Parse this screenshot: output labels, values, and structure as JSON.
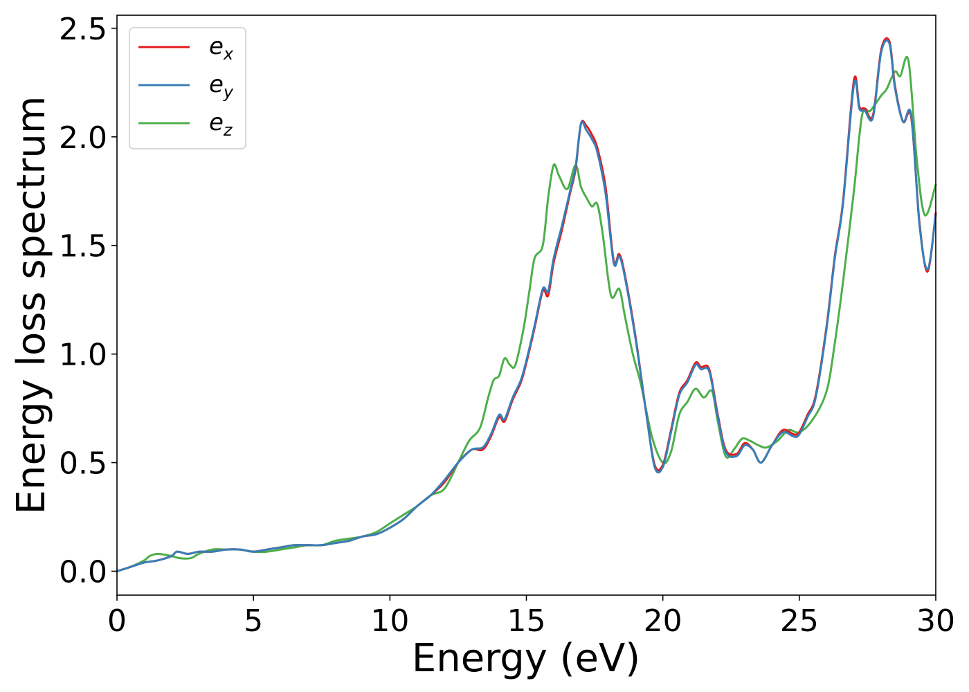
{
  "chart_data": {
    "type": "line",
    "title": "",
    "xlabel": "Energy (eV)",
    "ylabel": "Energy loss spectrum",
    "xlim": [
      0,
      30
    ],
    "ylim": [
      -0.11,
      2.56
    ],
    "xticks": [
      0,
      5,
      10,
      15,
      20,
      25,
      30
    ],
    "xtick_labels": [
      "0",
      "5",
      "10",
      "15",
      "20",
      "25",
      "30"
    ],
    "yticks": [
      0.0,
      0.5,
      1.0,
      1.5,
      2.0,
      2.5
    ],
    "ytick_labels": [
      "0.0",
      "0.5",
      "1.0",
      "1.5",
      "2.0",
      "2.5"
    ],
    "grid": false,
    "legend": {
      "position": "upper-left",
      "entries": [
        {
          "base": "e",
          "sub": "x",
          "color": "#e41a1c"
        },
        {
          "base": "e",
          "sub": "y",
          "color": "#377eb8"
        },
        {
          "base": "e",
          "sub": "z",
          "color": "#4daf4a"
        }
      ]
    },
    "series": [
      {
        "color": "#e41a1c",
        "x": [
          0,
          0.5,
          1.0,
          1.5,
          2.0,
          2.2,
          2.6,
          3.0,
          3.5,
          4.0,
          4.5,
          5.0,
          5.5,
          6.0,
          6.5,
          7.0,
          7.5,
          8.0,
          8.5,
          9.0,
          9.5,
          10.0,
          10.5,
          11.0,
          11.5,
          12.0,
          12.5,
          13.0,
          13.4,
          13.7,
          14.0,
          14.2,
          14.5,
          14.8,
          15.0,
          15.3,
          15.6,
          15.8,
          16.0,
          16.3,
          16.6,
          16.8,
          17.0,
          17.2,
          17.4,
          17.6,
          17.9,
          18.2,
          18.4,
          18.6,
          19.0,
          19.4,
          19.7,
          20.0,
          20.3,
          20.6,
          20.9,
          21.2,
          21.4,
          21.7,
          22.0,
          22.3,
          22.7,
          23.0,
          23.3,
          23.6,
          24.0,
          24.4,
          24.8,
          25.0,
          25.3,
          25.6,
          26.0,
          26.3,
          26.6,
          27.0,
          27.2,
          27.4,
          27.7,
          28.0,
          28.3,
          28.5,
          28.8,
          29.1,
          29.4,
          29.7,
          30.0
        ],
        "y": [
          0.0,
          0.02,
          0.04,
          0.05,
          0.07,
          0.09,
          0.08,
          0.09,
          0.09,
          0.1,
          0.1,
          0.09,
          0.1,
          0.11,
          0.12,
          0.12,
          0.12,
          0.13,
          0.14,
          0.16,
          0.17,
          0.2,
          0.24,
          0.3,
          0.35,
          0.41,
          0.5,
          0.56,
          0.56,
          0.62,
          0.71,
          0.69,
          0.79,
          0.87,
          0.96,
          1.12,
          1.29,
          1.27,
          1.42,
          1.57,
          1.74,
          1.85,
          2.06,
          2.05,
          2.01,
          1.95,
          1.77,
          1.43,
          1.46,
          1.37,
          1.08,
          0.72,
          0.49,
          0.49,
          0.65,
          0.82,
          0.88,
          0.96,
          0.94,
          0.93,
          0.73,
          0.56,
          0.54,
          0.59,
          0.56,
          0.5,
          0.58,
          0.65,
          0.63,
          0.64,
          0.72,
          0.81,
          1.13,
          1.45,
          1.7,
          2.26,
          2.14,
          2.13,
          2.1,
          2.4,
          2.44,
          2.24,
          2.07,
          2.09,
          1.61,
          1.38,
          1.65
        ]
      },
      {
        "color": "#377eb8",
        "x": [
          0,
          0.5,
          1.0,
          1.5,
          2.0,
          2.2,
          2.6,
          3.0,
          3.5,
          4.0,
          4.5,
          5.0,
          5.5,
          6.0,
          6.5,
          7.0,
          7.5,
          8.0,
          8.5,
          9.0,
          9.5,
          10.0,
          10.5,
          11.0,
          11.5,
          12.0,
          12.5,
          13.0,
          13.4,
          13.7,
          14.0,
          14.2,
          14.5,
          14.8,
          15.0,
          15.3,
          15.6,
          15.8,
          16.0,
          16.3,
          16.6,
          16.8,
          17.0,
          17.2,
          17.4,
          17.6,
          17.9,
          18.2,
          18.4,
          18.6,
          19.0,
          19.4,
          19.7,
          20.0,
          20.3,
          20.6,
          20.9,
          21.2,
          21.4,
          21.7,
          22.0,
          22.3,
          22.7,
          23.0,
          23.3,
          23.6,
          24.0,
          24.4,
          24.8,
          25.0,
          25.3,
          25.6,
          26.0,
          26.3,
          26.6,
          27.0,
          27.2,
          27.4,
          27.7,
          28.0,
          28.3,
          28.5,
          28.8,
          29.1,
          29.4,
          29.7,
          30.0
        ],
        "y": [
          0.0,
          0.02,
          0.04,
          0.05,
          0.07,
          0.09,
          0.08,
          0.09,
          0.09,
          0.1,
          0.1,
          0.09,
          0.1,
          0.11,
          0.12,
          0.12,
          0.12,
          0.13,
          0.14,
          0.16,
          0.17,
          0.2,
          0.24,
          0.3,
          0.35,
          0.42,
          0.5,
          0.56,
          0.57,
          0.63,
          0.72,
          0.7,
          0.8,
          0.88,
          0.97,
          1.13,
          1.3,
          1.29,
          1.44,
          1.59,
          1.75,
          1.86,
          2.06,
          2.03,
          1.99,
          1.93,
          1.74,
          1.42,
          1.45,
          1.36,
          1.07,
          0.72,
          0.48,
          0.48,
          0.64,
          0.81,
          0.87,
          0.95,
          0.93,
          0.92,
          0.72,
          0.55,
          0.53,
          0.58,
          0.56,
          0.5,
          0.58,
          0.64,
          0.62,
          0.63,
          0.71,
          0.8,
          1.12,
          1.44,
          1.69,
          2.24,
          2.13,
          2.12,
          2.09,
          2.39,
          2.43,
          2.23,
          2.07,
          2.1,
          1.6,
          1.39,
          1.64
        ]
      },
      {
        "color": "#4daf4a",
        "x": [
          0,
          0.5,
          1.0,
          1.2,
          1.5,
          2.0,
          2.3,
          2.7,
          3.0,
          3.5,
          4.0,
          4.5,
          5.0,
          5.5,
          6.0,
          6.5,
          7.0,
          7.5,
          8.0,
          8.5,
          9.0,
          9.5,
          10.0,
          10.5,
          11.0,
          11.5,
          12.0,
          12.5,
          12.9,
          13.3,
          13.6,
          13.8,
          14.0,
          14.2,
          14.4,
          14.6,
          14.9,
          15.1,
          15.3,
          15.6,
          15.8,
          16.0,
          16.2,
          16.5,
          16.8,
          17.0,
          17.2,
          17.4,
          17.6,
          17.8,
          18.1,
          18.4,
          18.6,
          18.9,
          19.2,
          19.6,
          20.0,
          20.3,
          20.6,
          20.9,
          21.2,
          21.5,
          21.8,
          22.0,
          22.3,
          22.6,
          22.9,
          23.2,
          23.5,
          23.8,
          24.2,
          24.6,
          25.0,
          25.5,
          26.0,
          26.3,
          26.6,
          27.0,
          27.3,
          27.6,
          28.0,
          28.2,
          28.5,
          28.7,
          29.0,
          29.3,
          29.6,
          30.0
        ],
        "y": [
          0.0,
          0.02,
          0.05,
          0.07,
          0.08,
          0.07,
          0.06,
          0.06,
          0.08,
          0.1,
          0.1,
          0.1,
          0.09,
          0.09,
          0.1,
          0.11,
          0.12,
          0.12,
          0.14,
          0.15,
          0.16,
          0.18,
          0.22,
          0.26,
          0.3,
          0.35,
          0.38,
          0.5,
          0.6,
          0.66,
          0.8,
          0.88,
          0.9,
          0.98,
          0.95,
          0.95,
          1.12,
          1.28,
          1.44,
          1.5,
          1.72,
          1.87,
          1.82,
          1.76,
          1.87,
          1.77,
          1.72,
          1.68,
          1.69,
          1.55,
          1.27,
          1.3,
          1.18,
          1.0,
          0.86,
          0.62,
          0.5,
          0.55,
          0.72,
          0.78,
          0.84,
          0.8,
          0.83,
          0.7,
          0.53,
          0.56,
          0.61,
          0.6,
          0.58,
          0.57,
          0.6,
          0.65,
          0.64,
          0.7,
          0.83,
          1.05,
          1.33,
          1.75,
          2.1,
          2.12,
          2.19,
          2.22,
          2.3,
          2.28,
          2.35,
          1.9,
          1.64,
          1.78
        ]
      }
    ]
  }
}
